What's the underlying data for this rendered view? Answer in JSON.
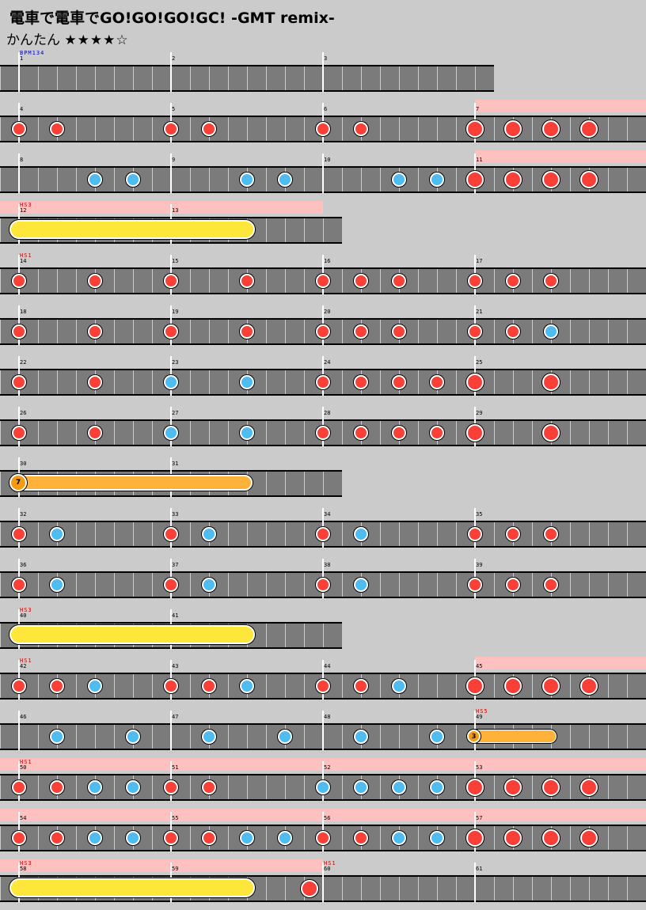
{
  "title": "電車で電車でGO!GO!GO!GC! -GMT remix-",
  "difficulty": {
    "name": "かんたん",
    "stars": "★★★★☆"
  },
  "rows": [
    {
      "measures": [
        1,
        2,
        3
      ],
      "lanes": 3,
      "events": [
        {
          "type": "bpm",
          "text": "BPM134",
          "at": 0
        }
      ],
      "notes": []
    },
    {
      "measures": [
        4,
        5,
        6,
        7
      ],
      "lanes": 4,
      "gogo": [
        3
      ],
      "notes": [
        {
          "t": "don",
          "m": 0,
          "p": 0
        },
        {
          "t": "don",
          "m": 0,
          "p": 2
        },
        {
          "t": "don",
          "m": 1,
          "p": 0
        },
        {
          "t": "don",
          "m": 1,
          "p": 2
        },
        {
          "t": "don",
          "m": 2,
          "p": 0
        },
        {
          "t": "don",
          "m": 2,
          "p": 2
        },
        {
          "t": "DON",
          "m": 3,
          "p": 0
        },
        {
          "t": "DON",
          "m": 3,
          "p": 2
        },
        {
          "t": "DON",
          "m": 3,
          "p": 4
        },
        {
          "t": "DON",
          "m": 3,
          "p": 6
        }
      ]
    },
    {
      "measures": [
        8,
        9,
        10,
        11
      ],
      "lanes": 4,
      "gogo": [
        3
      ],
      "notes": [
        {
          "t": "ka",
          "m": 0,
          "p": 4
        },
        {
          "t": "ka",
          "m": 0,
          "p": 6
        },
        {
          "t": "ka",
          "m": 1,
          "p": 4
        },
        {
          "t": "ka",
          "m": 1,
          "p": 6
        },
        {
          "t": "ka",
          "m": 2,
          "p": 4
        },
        {
          "t": "ka",
          "m": 2,
          "p": 6
        },
        {
          "t": "DON",
          "m": 3,
          "p": 0
        },
        {
          "t": "DON",
          "m": 3,
          "p": 2
        },
        {
          "t": "DON",
          "m": 3,
          "p": 4
        },
        {
          "t": "DON",
          "m": 3,
          "p": 6
        }
      ]
    },
    {
      "measures": [
        12,
        13
      ],
      "lanes": 2,
      "gogo": [
        0,
        1
      ],
      "events": [
        {
          "type": "hs",
          "text": "HS3",
          "at": 0
        }
      ],
      "rolls": [
        {
          "kind": "yellow",
          "m": 0,
          "p": 0,
          "endm": 1,
          "endp": 4.4
        }
      ]
    },
    {
      "measures": [
        14,
        15,
        16,
        17
      ],
      "lanes": 4,
      "events": [
        {
          "type": "hs",
          "text": "HS1",
          "at": 0
        }
      ],
      "notes": [
        {
          "t": "don",
          "m": 0,
          "p": 0
        },
        {
          "t": "don",
          "m": 0,
          "p": 4
        },
        {
          "t": "don",
          "m": 1,
          "p": 0
        },
        {
          "t": "don",
          "m": 1,
          "p": 4
        },
        {
          "t": "don",
          "m": 2,
          "p": 0
        },
        {
          "t": "don",
          "m": 2,
          "p": 2
        },
        {
          "t": "don",
          "m": 2,
          "p": 4
        },
        {
          "t": "don",
          "m": 3,
          "p": 0
        },
        {
          "t": "don",
          "m": 3,
          "p": 2
        },
        {
          "t": "don",
          "m": 3,
          "p": 4
        }
      ]
    },
    {
      "measures": [
        18,
        19,
        20,
        21
      ],
      "lanes": 4,
      "notes": [
        {
          "t": "don",
          "m": 0,
          "p": 0
        },
        {
          "t": "don",
          "m": 0,
          "p": 4
        },
        {
          "t": "don",
          "m": 1,
          "p": 0
        },
        {
          "t": "don",
          "m": 1,
          "p": 4
        },
        {
          "t": "don",
          "m": 2,
          "p": 0
        },
        {
          "t": "don",
          "m": 2,
          "p": 2
        },
        {
          "t": "don",
          "m": 2,
          "p": 4
        },
        {
          "t": "don",
          "m": 3,
          "p": 0
        },
        {
          "t": "don",
          "m": 3,
          "p": 2
        },
        {
          "t": "ka",
          "m": 3,
          "p": 4
        }
      ]
    },
    {
      "measures": [
        22,
        23,
        24,
        25
      ],
      "lanes": 4,
      "notes": [
        {
          "t": "don",
          "m": 0,
          "p": 0
        },
        {
          "t": "don",
          "m": 0,
          "p": 4
        },
        {
          "t": "ka",
          "m": 1,
          "p": 0
        },
        {
          "t": "ka",
          "m": 1,
          "p": 4
        },
        {
          "t": "don",
          "m": 2,
          "p": 0
        },
        {
          "t": "don",
          "m": 2,
          "p": 2
        },
        {
          "t": "don",
          "m": 2,
          "p": 4
        },
        {
          "t": "don",
          "m": 2,
          "p": 6
        },
        {
          "t": "DON",
          "m": 3,
          "p": 0
        },
        {
          "t": "DON",
          "m": 3,
          "p": 4
        }
      ]
    },
    {
      "measures": [
        26,
        27,
        28,
        29
      ],
      "lanes": 4,
      "notes": [
        {
          "t": "don",
          "m": 0,
          "p": 0
        },
        {
          "t": "don",
          "m": 0,
          "p": 4
        },
        {
          "t": "ka",
          "m": 1,
          "p": 0
        },
        {
          "t": "ka",
          "m": 1,
          "p": 4
        },
        {
          "t": "don",
          "m": 2,
          "p": 0
        },
        {
          "t": "don",
          "m": 2,
          "p": 2
        },
        {
          "t": "don",
          "m": 2,
          "p": 4
        },
        {
          "t": "don",
          "m": 2,
          "p": 6
        },
        {
          "t": "DON",
          "m": 3,
          "p": 0
        },
        {
          "t": "DON",
          "m": 3,
          "p": 4
        }
      ]
    },
    {
      "measures": [
        30,
        31
      ],
      "lanes": 2,
      "balloon": {
        "m": 0,
        "p": 0,
        "endm": 1,
        "endp": 4.3,
        "count": "7"
      }
    },
    {
      "measures": [
        32,
        33,
        34,
        35
      ],
      "lanes": 4,
      "notes": [
        {
          "t": "don",
          "m": 0,
          "p": 0
        },
        {
          "t": "ka",
          "m": 0,
          "p": 2
        },
        {
          "t": "don",
          "m": 1,
          "p": 0
        },
        {
          "t": "ka",
          "m": 1,
          "p": 2
        },
        {
          "t": "don",
          "m": 2,
          "p": 0
        },
        {
          "t": "ka",
          "m": 2,
          "p": 2
        },
        {
          "t": "don",
          "m": 3,
          "p": 0
        },
        {
          "t": "don",
          "m": 3,
          "p": 2
        },
        {
          "t": "don",
          "m": 3,
          "p": 4
        }
      ]
    },
    {
      "measures": [
        36,
        37,
        38,
        39
      ],
      "lanes": 4,
      "notes": [
        {
          "t": "don",
          "m": 0,
          "p": 0
        },
        {
          "t": "ka",
          "m": 0,
          "p": 2
        },
        {
          "t": "don",
          "m": 1,
          "p": 0
        },
        {
          "t": "ka",
          "m": 1,
          "p": 2
        },
        {
          "t": "don",
          "m": 2,
          "p": 0
        },
        {
          "t": "ka",
          "m": 2,
          "p": 2
        },
        {
          "t": "don",
          "m": 3,
          "p": 0
        },
        {
          "t": "don",
          "m": 3,
          "p": 2
        },
        {
          "t": "don",
          "m": 3,
          "p": 4
        }
      ]
    },
    {
      "measures": [
        40,
        41
      ],
      "lanes": 2,
      "events": [
        {
          "type": "hs",
          "text": "HS3",
          "at": 0
        }
      ],
      "rolls": [
        {
          "kind": "yellow",
          "m": 0,
          "p": 0,
          "endm": 1,
          "endp": 4.4
        }
      ]
    },
    {
      "measures": [
        42,
        43,
        44,
        45
      ],
      "lanes": 4,
      "gogo": [
        3
      ],
      "events": [
        {
          "type": "hs",
          "text": "HS1",
          "at": 0
        }
      ],
      "notes": [
        {
          "t": "don",
          "m": 0,
          "p": 0
        },
        {
          "t": "don",
          "m": 0,
          "p": 2
        },
        {
          "t": "ka",
          "m": 0,
          "p": 4
        },
        {
          "t": "don",
          "m": 1,
          "p": 0
        },
        {
          "t": "don",
          "m": 1,
          "p": 2
        },
        {
          "t": "ka",
          "m": 1,
          "p": 4
        },
        {
          "t": "don",
          "m": 2,
          "p": 0
        },
        {
          "t": "don",
          "m": 2,
          "p": 2
        },
        {
          "t": "ka",
          "m": 2,
          "p": 4
        },
        {
          "t": "DON",
          "m": 3,
          "p": 0
        },
        {
          "t": "DON",
          "m": 3,
          "p": 2
        },
        {
          "t": "DON",
          "m": 3,
          "p": 4
        },
        {
          "t": "DON",
          "m": 3,
          "p": 6
        }
      ]
    },
    {
      "measures": [
        46,
        47,
        48,
        49
      ],
      "lanes": 4,
      "events": [
        {
          "type": "hs",
          "text": "HS5",
          "at": 3
        }
      ],
      "notes": [
        {
          "t": "ka",
          "m": 0,
          "p": 2
        },
        {
          "t": "ka",
          "m": 0,
          "p": 6
        },
        {
          "t": "ka",
          "m": 1,
          "p": 2
        },
        {
          "t": "ka",
          "m": 1,
          "p": 6
        },
        {
          "t": "ka",
          "m": 2,
          "p": 2
        },
        {
          "t": "ka",
          "m": 2,
          "p": 6
        }
      ],
      "smallballoon": {
        "m": 3,
        "p": 0,
        "endm": 3,
        "endp": 4.3,
        "count": "3"
      }
    },
    {
      "measures": [
        50,
        51,
        52,
        53
      ],
      "lanes": 4,
      "gogo": [
        0,
        1,
        2,
        3
      ],
      "events": [
        {
          "type": "hs",
          "text": "HS1",
          "at": 0
        }
      ],
      "notes": [
        {
          "t": "don",
          "m": 0,
          "p": 0
        },
        {
          "t": "don",
          "m": 0,
          "p": 2
        },
        {
          "t": "ka",
          "m": 0,
          "p": 4
        },
        {
          "t": "ka",
          "m": 0,
          "p": 6
        },
        {
          "t": "don",
          "m": 1,
          "p": 0
        },
        {
          "t": "don",
          "m": 1,
          "p": 2
        },
        {
          "t": "ka",
          "m": 2,
          "p": 0
        },
        {
          "t": "ka",
          "m": 2,
          "p": 2
        },
        {
          "t": "ka",
          "m": 2,
          "p": 4
        },
        {
          "t": "ka",
          "m": 2,
          "p": 6
        },
        {
          "t": "DON",
          "m": 3,
          "p": 0
        },
        {
          "t": "DON",
          "m": 3,
          "p": 2
        },
        {
          "t": "DON",
          "m": 3,
          "p": 4
        },
        {
          "t": "DON",
          "m": 3,
          "p": 6
        }
      ]
    },
    {
      "measures": [
        54,
        55,
        56,
        57
      ],
      "lanes": 4,
      "gogo": [
        0,
        1,
        2,
        3
      ],
      "notes": [
        {
          "t": "don",
          "m": 0,
          "p": 0
        },
        {
          "t": "don",
          "m": 0,
          "p": 2
        },
        {
          "t": "ka",
          "m": 0,
          "p": 4
        },
        {
          "t": "ka",
          "m": 0,
          "p": 6
        },
        {
          "t": "don",
          "m": 1,
          "p": 0
        },
        {
          "t": "don",
          "m": 1,
          "p": 2
        },
        {
          "t": "ka",
          "m": 1,
          "p": 4
        },
        {
          "t": "ka",
          "m": 1,
          "p": 6
        },
        {
          "t": "don",
          "m": 2,
          "p": 0
        },
        {
          "t": "don",
          "m": 2,
          "p": 2
        },
        {
          "t": "ka",
          "m": 2,
          "p": 4
        },
        {
          "t": "ka",
          "m": 2,
          "p": 6
        },
        {
          "t": "DON",
          "m": 3,
          "p": 0
        },
        {
          "t": "DON",
          "m": 3,
          "p": 2
        },
        {
          "t": "DON",
          "m": 3,
          "p": 4
        },
        {
          "t": "DON",
          "m": 3,
          "p": 6
        }
      ]
    },
    {
      "measures": [
        58,
        59,
        60,
        61
      ],
      "lanes": 4,
      "gogo": [
        0,
        1
      ],
      "events": [
        {
          "type": "hs",
          "text": "HS3",
          "at": 0
        },
        {
          "type": "hs",
          "text": "HS1",
          "at": 2
        }
      ],
      "rolls": [
        {
          "kind": "yellow",
          "m": 0,
          "p": 0,
          "endm": 1,
          "endp": 4.4
        }
      ],
      "notes": [
        {
          "t": "DON",
          "m": 1,
          "p": 7.3
        }
      ]
    }
  ],
  "colors": {
    "background": "#cbcbcb",
    "lane": "#7b7b7b",
    "gogo": "#ffc0c0",
    "don": "#f84038",
    "ka": "#4ebcf0",
    "roll": "#ffe63a",
    "balloon": "#ffb23a",
    "hs_text": "#d00000",
    "bpm_text": "#0000c0"
  }
}
